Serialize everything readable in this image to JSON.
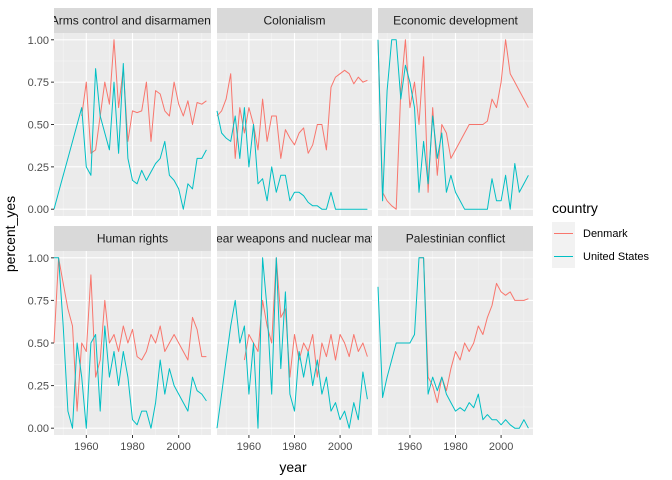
{
  "chart_data": {
    "type": "line",
    "xlabel": "year",
    "ylabel": "percent_yes",
    "xlim": [
      1946,
      2014
    ],
    "ylim": [
      -0.04,
      1.04
    ],
    "x_ticks": [
      1960,
      1980,
      2000
    ],
    "y_ticks": [
      0.0,
      0.25,
      0.5,
      0.75,
      1.0
    ],
    "x_tick_labels": [
      "1960",
      "1980",
      "2000"
    ],
    "y_tick_labels": [
      "0.00",
      "0.25",
      "0.50",
      "0.75",
      "1.00"
    ],
    "grid": true,
    "legend": {
      "title": "country",
      "placement": "right",
      "entries": [
        {
          "label": "Denmark",
          "color": "#F8766D"
        },
        {
          "label": "United States",
          "color": "#00BFC4"
        }
      ]
    },
    "panels": [
      {
        "title": "Arms control and disarmament",
        "series": [
          {
            "name": "Denmark",
            "x": [
              1958,
              1960,
              1962,
              1964,
              1966,
              1968,
              1970,
              1972,
              1974,
              1976,
              1978,
              1980,
              1982,
              1984,
              1986,
              1988,
              1990,
              1992,
              1994,
              1996,
              1998,
              2000,
              2002,
              2004,
              2006,
              2008,
              2010,
              2012
            ],
            "y": [
              0.55,
              0.75,
              0.33,
              0.35,
              0.55,
              0.75,
              0.62,
              1.0,
              0.6,
              0.83,
              0.4,
              0.58,
              0.57,
              0.58,
              0.75,
              0.4,
              0.7,
              0.68,
              0.58,
              0.55,
              0.75,
              0.62,
              0.55,
              0.64,
              0.5,
              0.63,
              0.62,
              0.64
            ]
          },
          {
            "name": "United States",
            "x": [
              1946,
              1949,
              1952,
              1955,
              1958,
              1960,
              1962,
              1964,
              1966,
              1968,
              1970,
              1972,
              1974,
              1976,
              1978,
              1980,
              1982,
              1984,
              1986,
              1988,
              1990,
              1992,
              1994,
              1996,
              1998,
              2000,
              2002,
              2004,
              2006,
              2008,
              2010,
              2012
            ],
            "y": [
              0.0,
              0.15,
              0.3,
              0.45,
              0.6,
              0.25,
              0.2,
              0.83,
              0.55,
              0.45,
              0.35,
              0.75,
              0.33,
              0.86,
              0.3,
              0.17,
              0.15,
              0.23,
              0.17,
              0.22,
              0.27,
              0.3,
              0.4,
              0.2,
              0.17,
              0.12,
              0.0,
              0.15,
              0.12,
              0.3,
              0.3,
              0.35
            ]
          }
        ]
      },
      {
        "title": "Colonialism",
        "series": [
          {
            "name": "Denmark",
            "x": [
              1946,
              1948,
              1950,
              1952,
              1954,
              1956,
              1958,
              1960,
              1962,
              1964,
              1966,
              1968,
              1970,
              1972,
              1974,
              1976,
              1978,
              1980,
              1982,
              1984,
              1986,
              1988,
              1990,
              1992,
              1994,
              1996,
              1998,
              2000,
              2002,
              2004,
              2006,
              2008,
              2010,
              2012
            ],
            "y": [
              0.55,
              0.58,
              0.65,
              0.8,
              0.3,
              0.6,
              0.45,
              0.6,
              0.5,
              0.35,
              0.65,
              0.4,
              0.55,
              0.55,
              0.3,
              0.47,
              0.42,
              0.38,
              0.45,
              0.48,
              0.33,
              0.38,
              0.5,
              0.5,
              0.35,
              0.72,
              0.78,
              0.8,
              0.82,
              0.8,
              0.74,
              0.78,
              0.75,
              0.76
            ]
          },
          {
            "name": "United States",
            "x": [
              1946,
              1948,
              1950,
              1952,
              1954,
              1956,
              1958,
              1960,
              1962,
              1964,
              1966,
              1968,
              1970,
              1972,
              1974,
              1976,
              1978,
              1980,
              1982,
              1984,
              1986,
              1988,
              1990,
              1992,
              1994,
              1996,
              1998,
              2000,
              2002,
              2004,
              2006,
              2008,
              2010,
              2012
            ],
            "y": [
              0.58,
              0.45,
              0.42,
              0.4,
              0.55,
              0.3,
              0.6,
              0.25,
              0.5,
              0.15,
              0.18,
              0.05,
              0.25,
              0.1,
              0.2,
              0.2,
              0.05,
              0.1,
              0.1,
              0.08,
              0.04,
              0.02,
              0.02,
              0.0,
              0.0,
              0.1,
              0.0,
              0.0,
              0.0,
              0.0,
              0.0,
              0.0,
              0.0,
              0.0
            ]
          }
        ]
      },
      {
        "title": "Economic development",
        "series": [
          {
            "name": "Denmark",
            "x": [
              1946,
              1948,
              1950,
              1952,
              1954,
              1956,
              1958,
              1960,
              1962,
              1964,
              1966,
              1968,
              1970,
              1972,
              1974,
              1976,
              1978,
              1980,
              1982,
              1984,
              1986,
              1988,
              1990,
              1992,
              1994,
              1996,
              1998,
              2000,
              2002,
              2004,
              2006,
              2008,
              2010,
              2012
            ],
            "y": [
              1.0,
              0.1,
              0.05,
              0.02,
              0.0,
              0.7,
              1.0,
              0.6,
              0.75,
              0.5,
              0.9,
              0.1,
              0.6,
              0.2,
              0.5,
              0.45,
              0.3,
              0.35,
              0.4,
              0.45,
              0.5,
              0.5,
              0.5,
              0.5,
              0.52,
              0.65,
              0.6,
              0.75,
              1.0,
              0.8,
              0.75,
              0.7,
              0.65,
              0.6
            ]
          },
          {
            "name": "United States",
            "x": [
              1946,
              1948,
              1950,
              1952,
              1954,
              1956,
              1958,
              1960,
              1962,
              1964,
              1966,
              1968,
              1970,
              1972,
              1974,
              1976,
              1978,
              1980,
              1982,
              1984,
              1986,
              1988,
              1990,
              1992,
              1994,
              1996,
              1998,
              2000,
              2002,
              2004,
              2006,
              2008,
              2010,
              2012
            ],
            "y": [
              1.0,
              0.05,
              0.7,
              1.0,
              1.0,
              0.65,
              0.85,
              0.75,
              0.6,
              0.1,
              0.4,
              0.15,
              0.55,
              0.3,
              0.45,
              0.1,
              0.2,
              0.1,
              0.05,
              0.0,
              0.0,
              0.0,
              0.0,
              0.0,
              0.0,
              0.18,
              0.05,
              0.05,
              0.2,
              0.0,
              0.27,
              0.1,
              0.15,
              0.2
            ]
          }
        ]
      },
      {
        "title": "Human rights",
        "series": [
          {
            "name": "Denmark",
            "x": [
              1946,
              1948,
              1950,
              1952,
              1954,
              1956,
              1958,
              1960,
              1962,
              1964,
              1966,
              1968,
              1970,
              1972,
              1974,
              1976,
              1978,
              1980,
              1982,
              1984,
              1986,
              1988,
              1990,
              1992,
              1994,
              1996,
              1998,
              2000,
              2002,
              2004,
              2006,
              2008,
              2010,
              2012
            ],
            "y": [
              0.5,
              1.0,
              0.85,
              0.7,
              0.6,
              0.1,
              0.5,
              0.45,
              0.9,
              0.3,
              0.4,
              0.75,
              0.5,
              0.55,
              0.45,
              0.6,
              0.5,
              0.58,
              0.42,
              0.4,
              0.45,
              0.55,
              0.5,
              0.6,
              0.45,
              0.5,
              0.55,
              0.5,
              0.45,
              0.4,
              0.65,
              0.58,
              0.42,
              0.42
            ]
          },
          {
            "name": "United States",
            "x": [
              1946,
              1948,
              1950,
              1952,
              1954,
              1956,
              1958,
              1960,
              1962,
              1964,
              1966,
              1968,
              1970,
              1972,
              1974,
              1976,
              1978,
              1980,
              1982,
              1984,
              1986,
              1988,
              1990,
              1992,
              1994,
              1996,
              1998,
              2000,
              2002,
              2004,
              2006,
              2008,
              2010,
              2012
            ],
            "y": [
              1.0,
              1.0,
              0.6,
              0.1,
              0.0,
              0.5,
              0.3,
              0.0,
              0.5,
              0.55,
              0.1,
              0.6,
              0.3,
              0.45,
              0.25,
              0.45,
              0.3,
              0.05,
              0.02,
              0.1,
              0.1,
              0.0,
              0.15,
              0.4,
              0.2,
              0.35,
              0.25,
              0.2,
              0.15,
              0.1,
              0.3,
              0.22,
              0.2,
              0.16
            ]
          }
        ]
      },
      {
        "title": "Nuclear weapons and nuclear material",
        "series": [
          {
            "name": "Denmark",
            "x": [
              1958,
              1960,
              1962,
              1964,
              1966,
              1968,
              1970,
              1972,
              1974,
              1976,
              1978,
              1980,
              1982,
              1984,
              1986,
              1988,
              1990,
              1992,
              1994,
              1996,
              1998,
              2000,
              2002,
              2004,
              2006,
              2008,
              2010,
              2012
            ],
            "y": [
              0.4,
              0.55,
              0.5,
              0.45,
              0.75,
              0.6,
              0.5,
              1.0,
              0.65,
              0.7,
              0.3,
              0.55,
              0.4,
              0.5,
              0.45,
              0.55,
              0.3,
              0.5,
              0.42,
              0.55,
              0.4,
              0.55,
              0.5,
              0.42,
              0.55,
              0.45,
              0.5,
              0.42
            ]
          },
          {
            "name": "United States",
            "x": [
              1946,
              1948,
              1950,
              1952,
              1954,
              1956,
              1958,
              1960,
              1962,
              1964,
              1966,
              1968,
              1970,
              1972,
              1974,
              1976,
              1978,
              1980,
              1982,
              1984,
              1986,
              1988,
              1990,
              1992,
              1994,
              1996,
              1998,
              2000,
              2002,
              2004,
              2006,
              2008,
              2010,
              2012
            ],
            "y": [
              0.0,
              0.2,
              0.4,
              0.6,
              0.75,
              0.5,
              0.6,
              0.2,
              0.5,
              0.0,
              1.0,
              0.7,
              0.2,
              1.0,
              0.35,
              0.8,
              0.2,
              0.1,
              0.45,
              0.3,
              0.45,
              0.25,
              0.4,
              0.2,
              0.3,
              0.1,
              0.15,
              0.05,
              0.1,
              0.0,
              0.15,
              0.05,
              0.33,
              0.17
            ]
          }
        ]
      },
      {
        "title": "Palestinian conflict",
        "series": [
          {
            "name": "Denmark",
            "x": [
              1964,
              1966,
              1968,
              1970,
              1972,
              1974,
              1976,
              1978,
              1980,
              1982,
              1984,
              1986,
              1988,
              1990,
              1992,
              1994,
              1996,
              1998,
              2000,
              2002,
              2004,
              2006,
              2008,
              2010,
              2012
            ],
            "y": [
              1.0,
              1.0,
              0.3,
              0.25,
              0.15,
              0.3,
              0.22,
              0.35,
              0.45,
              0.4,
              0.5,
              0.45,
              0.5,
              0.6,
              0.55,
              0.65,
              0.72,
              0.85,
              0.8,
              0.78,
              0.8,
              0.75,
              0.75,
              0.75,
              0.76
            ]
          },
          {
            "name": "United States",
            "x": [
              1946,
              1948,
              1950,
              1952,
              1954,
              1956,
              1958,
              1960,
              1962,
              1964,
              1966,
              1968,
              1970,
              1972,
              1974,
              1976,
              1978,
              1980,
              1982,
              1984,
              1986,
              1988,
              1990,
              1992,
              1994,
              1996,
              1998,
              2000,
              2002,
              2004,
              2006,
              2008,
              2010,
              2012
            ],
            "y": [
              0.83,
              0.18,
              0.3,
              0.4,
              0.5,
              0.5,
              0.5,
              0.5,
              0.55,
              1.0,
              1.0,
              0.2,
              0.3,
              0.22,
              0.3,
              0.2,
              0.15,
              0.1,
              0.12,
              0.1,
              0.15,
              0.12,
              0.2,
              0.05,
              0.08,
              0.05,
              0.05,
              0.02,
              0.05,
              0.02,
              0.0,
              0.0,
              0.05,
              0.0
            ]
          }
        ]
      }
    ]
  }
}
